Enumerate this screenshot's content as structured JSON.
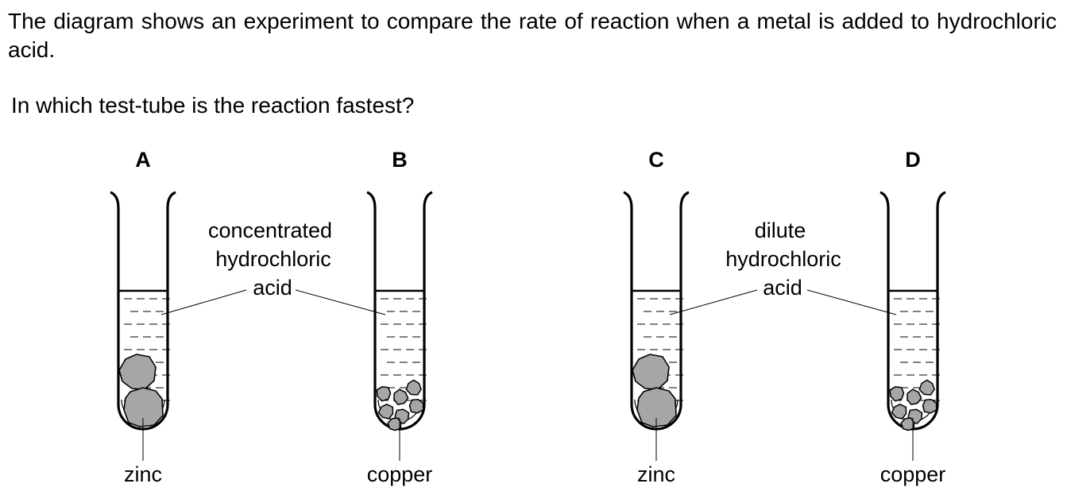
{
  "question": {
    "intro": "The diagram shows an experiment to compare the rate of reaction when a metal is added to hydrochloric acid.",
    "prompt": "In which test-tube is the reaction fastest?"
  },
  "tubes": [
    {
      "option": "A",
      "metal": "zinc",
      "metal_form": "large lumps"
    },
    {
      "option": "B",
      "metal": "copper",
      "metal_form": "small pieces"
    },
    {
      "option": "C",
      "metal": "zinc",
      "metal_form": "large lumps"
    },
    {
      "option": "D",
      "metal": "copper",
      "metal_form": "small pieces"
    }
  ],
  "acid_labels": {
    "left": {
      "line1": "concentrated",
      "line2": "hydrochloric",
      "line3": "acid"
    },
    "right": {
      "line1": "dilute",
      "line2": "hydrochloric",
      "line3": "acid"
    }
  },
  "colors": {
    "metal_fill": "#a6a6a6",
    "outline": "#000000"
  }
}
